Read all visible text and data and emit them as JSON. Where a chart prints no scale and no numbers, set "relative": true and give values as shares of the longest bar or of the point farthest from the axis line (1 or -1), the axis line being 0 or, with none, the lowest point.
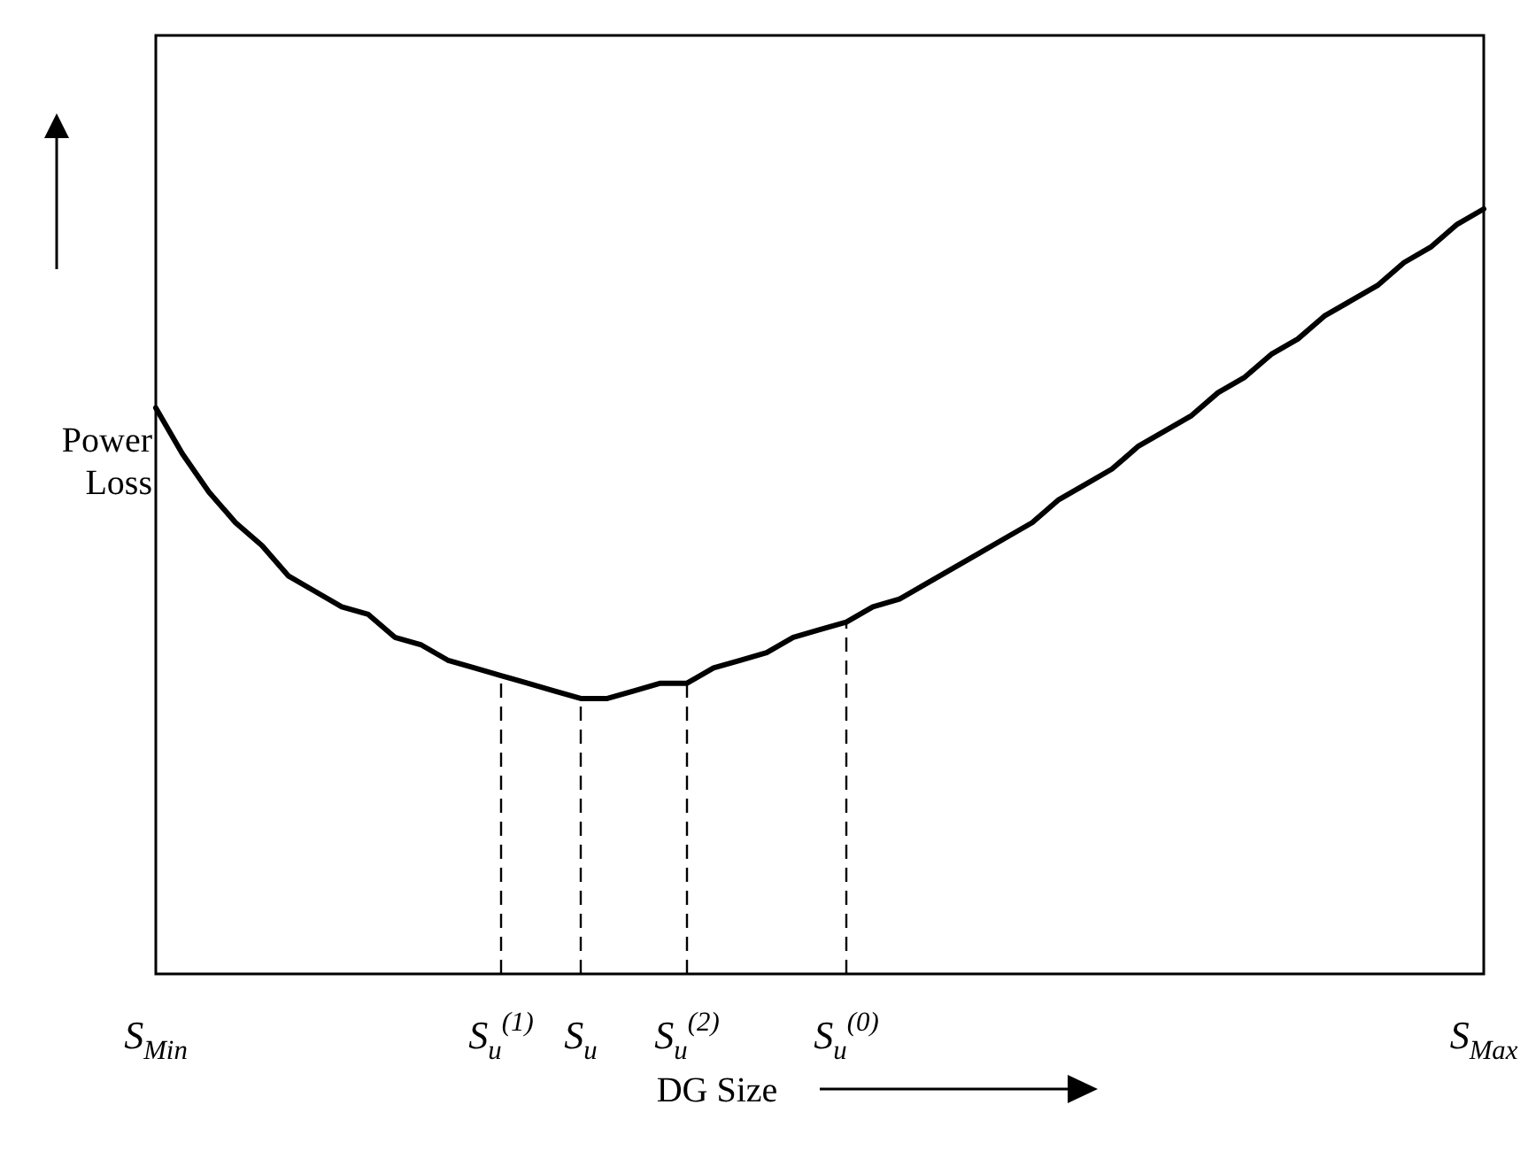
{
  "chart_data": {
    "type": "line",
    "relative": true,
    "xlabel": "DG Size",
    "ylabel": "Power Loss",
    "categories": [
      "S$_{Min}$",
      null,
      null,
      null,
      null,
      null,
      null,
      null,
      null,
      null,
      null,
      null,
      null,
      "S$_{u}$$^{(1)}$",
      null,
      null,
      "S$_{u}$",
      null,
      null,
      null,
      "S$_{u}$$^{(2)}$",
      null,
      null,
      null,
      null,
      null,
      "S$_{u}$$^{(0)}$",
      null,
      null,
      null,
      null,
      null,
      null,
      null,
      null,
      null,
      null,
      null,
      null,
      null,
      null,
      null,
      null,
      null,
      null,
      null,
      null,
      null,
      null,
      null,
      "S$_{Max}$"
    ],
    "series": [
      {
        "color": "#000000",
        "values": [
          0.74,
          0.68,
          0.63,
          0.59,
          0.56,
          0.52,
          0.5,
          0.48,
          0.47,
          0.44,
          0.43,
          0.41,
          0.4,
          0.39,
          0.38,
          0.37,
          0.36,
          0.36,
          0.37,
          0.38,
          0.38,
          0.4,
          0.41,
          0.42,
          0.44,
          0.45,
          0.46,
          0.48,
          0.49,
          0.51,
          0.53,
          0.55,
          0.57,
          0.59,
          0.62,
          0.64,
          0.66,
          0.69,
          0.71,
          0.73,
          0.76,
          0.78,
          0.81,
          0.83,
          0.86,
          0.88,
          0.9,
          0.93,
          0.95,
          0.98,
          1
        ]
      }
    ],
    "ref_lines": [
      {
        "axis": "x",
        "value": "S$_{u}$$^{(1)}$",
        "line_style": "dashed"
      },
      {
        "axis": "x",
        "value": "S$_{u}$",
        "line_style": "dashed"
      },
      {
        "axis": "x",
        "value": "S$_{u}$$^{(2)}$",
        "line_style": "dashed"
      },
      {
        "axis": "x",
        "value": "S$_{u}$$^{(0)}$",
        "line_style": "dashed"
      }
    ],
    "grid": false,
    "marker": "none",
    "line_style": "solid"
  }
}
